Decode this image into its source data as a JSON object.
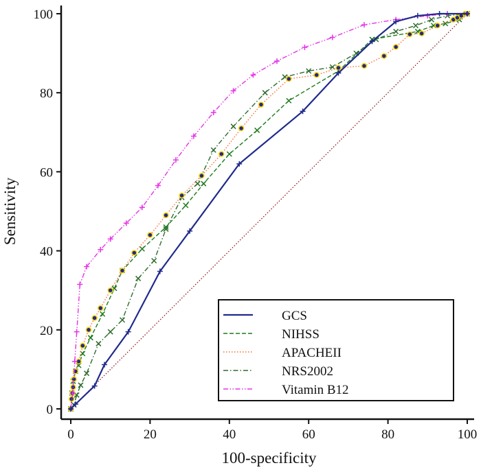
{
  "chart_data": {
    "type": "line",
    "title": "",
    "xlabel": "100-specificity",
    "ylabel": "Sensitivity",
    "xlim": [
      0,
      100
    ],
    "ylim": [
      0,
      100
    ],
    "x_ticks": [
      "0",
      "20",
      "40",
      "60",
      "80",
      "100"
    ],
    "y_ticks": [
      "0",
      "20",
      "40",
      "60",
      "80",
      "100"
    ],
    "grid": false,
    "legend_position": "bottom-right",
    "reference_line": {
      "x": [
        0,
        100
      ],
      "y": [
        0,
        100
      ],
      "color": "#8b1a1a"
    },
    "series": [
      {
        "name": "GCS",
        "color": "#1f2a8c",
        "style": "solid",
        "marker": "+",
        "x": [
          0,
          1.2,
          6,
          8.5,
          14.5,
          22.5,
          30,
          42.5,
          58.5,
          67.5,
          76,
          82,
          87.5,
          93,
          100
        ],
        "y": [
          0,
          1.2,
          5.8,
          11.2,
          19.5,
          34.8,
          45,
          62,
          75.3,
          85,
          93,
          98,
          99.5,
          100,
          100
        ]
      },
      {
        "name": "NIHSS",
        "color": "#1b7a1b",
        "style": "dashed",
        "marker": "x",
        "x": [
          0,
          0.3,
          0.6,
          1.2,
          2,
          3,
          5,
          8,
          11,
          13,
          18,
          24,
          29,
          33.5,
          40,
          47,
          55,
          67.5,
          76,
          87.5,
          91.5,
          94.5,
          98,
          100
        ],
        "y": [
          0,
          4,
          7,
          9.5,
          11,
          14,
          18,
          24,
          30.5,
          35,
          40.5,
          46,
          51.5,
          57,
          64.5,
          70.5,
          78,
          85.5,
          93.5,
          95.5,
          97,
          97.5,
          98.5,
          100
        ]
      },
      {
        "name": "APACHEII",
        "color": "#ff6a2a",
        "style": "dotted",
        "marker": "o",
        "x": [
          0,
          0.2,
          0.4,
          0.6,
          0.8,
          1.2,
          2,
          3,
          4.5,
          6,
          7.5,
          10,
          13,
          16,
          20,
          24,
          28,
          33,
          38,
          43,
          48,
          55,
          62,
          67.5,
          74,
          79,
          82,
          85.5,
          88.5,
          92.5,
          96.5,
          97.5,
          98.5,
          99.5,
          100
        ],
        "y": [
          0,
          2.5,
          4,
          5.5,
          7.5,
          9.5,
          12,
          16,
          20,
          23,
          25.5,
          30,
          35,
          39.5,
          44,
          49,
          54,
          59,
          64.5,
          71,
          77,
          83.5,
          84.5,
          86.3,
          86.8,
          89.3,
          91.6,
          94.8,
          95,
          97,
          98.5,
          99,
          99.5,
          100,
          100
        ]
      },
      {
        "name": "NRS2002",
        "color": "#2e6b2e",
        "style": "dashdot",
        "marker": "x",
        "x": [
          0,
          0.8,
          1.5,
          2.5,
          4,
          7,
          10,
          13,
          17,
          21,
          24,
          28,
          32,
          36,
          41,
          49,
          54,
          60,
          66,
          72,
          77,
          82,
          87,
          91,
          95,
          100
        ],
        "y": [
          0,
          1,
          3.5,
          6,
          9,
          16.5,
          19.5,
          22.5,
          33,
          37.5,
          45.5,
          53.5,
          57,
          65.5,
          71.5,
          80,
          84,
          85.5,
          86.5,
          90,
          93.5,
          95.5,
          97,
          98.5,
          99.5,
          100
        ]
      },
      {
        "name": "Vitamin B12",
        "color": "#e633e6",
        "style": "dashdotdot",
        "marker": "+",
        "x": [
          0,
          0.5,
          1,
          1.5,
          2.3,
          4,
          7.5,
          10,
          14,
          18,
          22,
          26.5,
          31,
          36,
          41,
          46,
          52,
          59,
          66,
          74,
          82,
          90,
          95,
          100
        ],
        "y": [
          0,
          4,
          12,
          19.5,
          31.5,
          36,
          40.3,
          43,
          47,
          51,
          56.5,
          63,
          69,
          75,
          80.5,
          84.5,
          88,
          91.5,
          94,
          97.2,
          98.5,
          99.5,
          100,
          100
        ]
      }
    ]
  }
}
